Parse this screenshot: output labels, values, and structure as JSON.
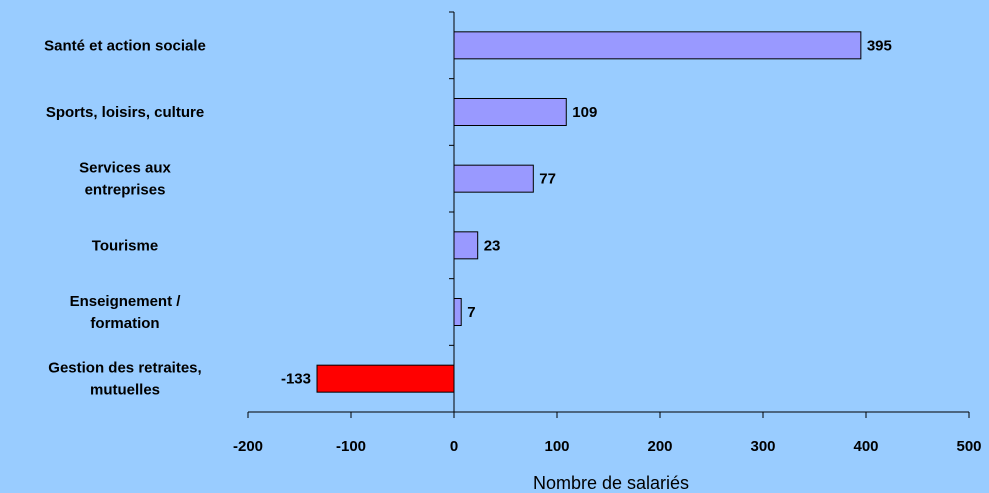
{
  "chart_data": {
    "type": "bar",
    "orientation": "horizontal",
    "xlabel": "Nombre de salariés",
    "xlim": [
      -200,
      500
    ],
    "xticks": [
      -200,
      -100,
      0,
      100,
      200,
      300,
      400,
      500
    ],
    "xtick_labels": [
      "-200",
      "-100",
      "0",
      "100",
      "200",
      "300",
      "400",
      "500"
    ],
    "grid": false,
    "categories": [
      [
        "Santé et action sociale"
      ],
      [
        "Sports, loisirs, culture"
      ],
      [
        "Services aux",
        "entreprises"
      ],
      [
        "Tourisme"
      ],
      [
        "Enseignement /",
        "formation"
      ],
      [
        "Gestion des retraites,",
        "mutuelles"
      ]
    ],
    "values": [
      395,
      109,
      77,
      23,
      7,
      -133
    ],
    "value_labels": [
      "395",
      "109",
      "77",
      "23",
      "7",
      "-133"
    ],
    "colors": {
      "positive": "#9999FF",
      "negative": "#FF0000",
      "background": "#99CCFF",
      "axis": "#000000"
    }
  }
}
